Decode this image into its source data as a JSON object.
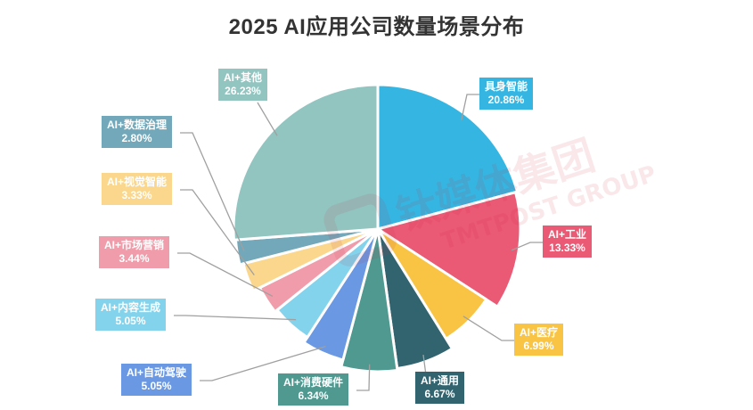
{
  "title": "2025 AI应用公司数量场景分布",
  "watermark": {
    "cn": "钛媒体集团",
    "en": "TMTPOST GROUP"
  },
  "chart_data": {
    "type": "pie",
    "title": "2025 AI应用公司数量场景分布",
    "unit": "%",
    "start_angle_deg": -90,
    "direction": "clockwise",
    "center": [
      424,
      257
    ],
    "slices": [
      {
        "name": "具身智能",
        "value": 20.86,
        "label": "20.86%",
        "color": "#35B6E2",
        "radius": 162,
        "box": [
          538,
          87
        ]
      },
      {
        "name": "AI+工业",
        "value": 13.33,
        "label": "13.33%",
        "color": "#EA5A75",
        "radius": 160,
        "box": [
          609,
          253
        ]
      },
      {
        "name": "AI+医疗",
        "value": 6.99,
        "label": "6.99%",
        "color": "#F9C443",
        "radius": 145,
        "box": [
          577,
          363
        ]
      },
      {
        "name": "AI+通用",
        "value": 6.67,
        "label": "6.67%",
        "color": "#326470",
        "radius": 158,
        "box": [
          466,
          417
        ]
      },
      {
        "name": "AI+消费硬件",
        "value": 6.34,
        "label": "6.34%",
        "color": "#4F9990",
        "radius": 160,
        "box": [
          312,
          419
        ]
      },
      {
        "name": "AI+自动驾驶",
        "value": 5.05,
        "label": "5.05%",
        "color": "#6A98E3",
        "radius": 152,
        "box": [
          136,
          408
        ]
      },
      {
        "name": "AI+内容生成",
        "value": 5.05,
        "label": "5.05%",
        "color": "#84D3EC",
        "radius": 145,
        "box": [
          107,
          335
        ]
      },
      {
        "name": "AI+市场营销",
        "value": 3.44,
        "label": "3.44%",
        "color": "#F19CAA",
        "radius": 148,
        "box": [
          111,
          265
        ]
      },
      {
        "name": "AI+视觉智能",
        "value": 3.33,
        "label": "3.33%",
        "color": "#FAD78D",
        "radius": 156,
        "box": [
          114,
          194
        ]
      },
      {
        "name": "AI+数据治理",
        "value": 2.8,
        "label": "2.80%",
        "color": "#72A8BA",
        "radius": 160,
        "box": [
          114,
          130
        ]
      },
      {
        "name": "AI+其他",
        "value": 26.23,
        "label": "26.23%",
        "color": "#92C4C0",
        "radius": 162,
        "box": [
          245,
          77
        ]
      }
    ],
    "legend": "none"
  }
}
